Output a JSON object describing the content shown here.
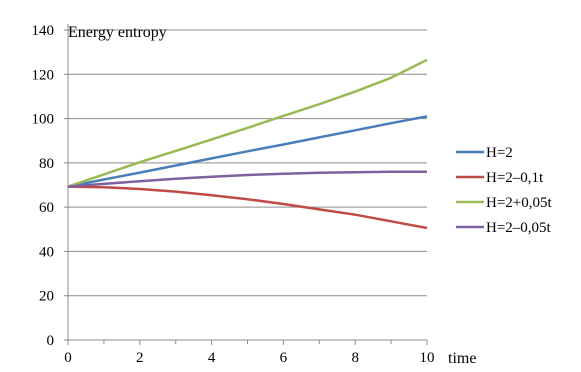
{
  "chart_data": {
    "type": "line",
    "title": "Energy entropy",
    "xlabel": "time",
    "ylabel": "",
    "x": [
      0,
      1,
      2,
      3,
      4,
      5,
      6,
      7,
      8,
      9,
      10
    ],
    "xlim": [
      0,
      10
    ],
    "ylim": [
      0,
      140
    ],
    "xticks": [
      0,
      2,
      4,
      6,
      8,
      10
    ],
    "yticks": [
      0,
      20,
      40,
      60,
      80,
      100,
      120,
      140
    ],
    "grid": true,
    "legend_position": "right",
    "series": [
      {
        "name": "H=2",
        "color": "#4a7ebb",
        "values": [
          69.3,
          72.5,
          75.6,
          78.8,
          82.0,
          85.2,
          88.3,
          91.5,
          94.7,
          97.9,
          101.0
        ]
      },
      {
        "name": "H=2–0,1t",
        "color": "#be4b48",
        "values": [
          69.3,
          69.0,
          68.2,
          67.0,
          65.4,
          63.6,
          61.4,
          59.0,
          56.6,
          53.6,
          50.6
        ]
      },
      {
        "name": "H=2+0,05t",
        "color": "#98b954",
        "values": [
          69.3,
          74.8,
          80.3,
          85.4,
          90.6,
          95.8,
          101.2,
          106.5,
          112.2,
          118.4,
          126.5
        ]
      },
      {
        "name": "H=2–0,05t",
        "color": "#7d60a0",
        "values": [
          69.3,
          70.5,
          71.7,
          72.8,
          73.7,
          74.5,
          75.1,
          75.5,
          75.8,
          76.0,
          76.0
        ]
      }
    ]
  }
}
